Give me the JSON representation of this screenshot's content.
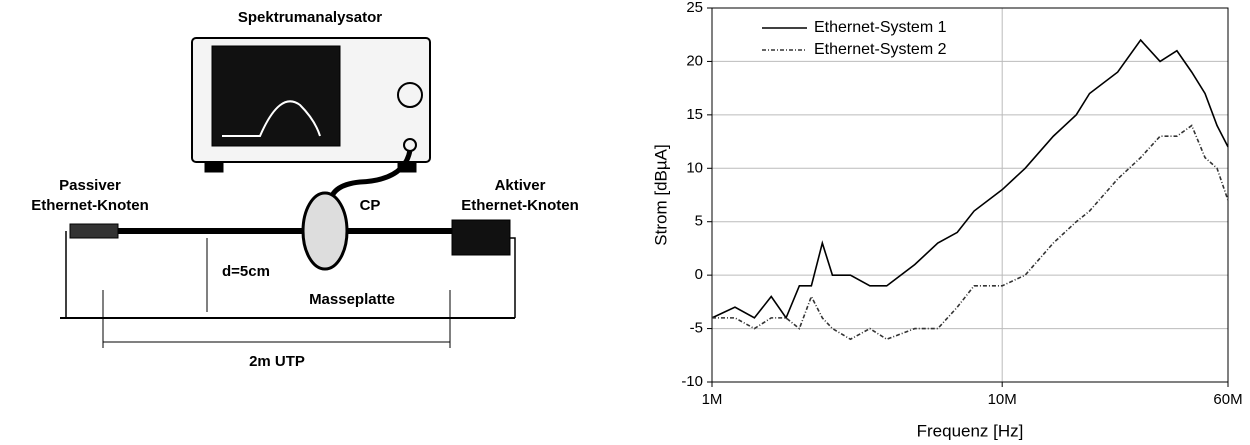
{
  "diagram": {
    "analyzer_label": "Spektrumanalysator",
    "passive_node": [
      "Passiver",
      "Ethernet-Knoten"
    ],
    "active_node": [
      "Aktiver",
      "Ethernet-Knoten"
    ],
    "probe_label": "CP",
    "distance_label": "d=5cm",
    "ground_label": "Masseplatte",
    "cable_label": "2m UTP"
  },
  "chart_data": {
    "type": "line",
    "xlabel": "Frequenz [Hz]",
    "ylabel": "Strom [dBµA]",
    "xlog": true,
    "grid": true,
    "legend": "upper-left",
    "x": [
      1000000,
      1200000,
      1400000,
      1600000,
      1800000,
      2000000,
      2200000,
      2400000,
      2600000,
      3000000,
      3500000,
      4000000,
      5000000,
      6000000,
      7000000,
      8000000,
      10000000,
      12000000,
      15000000,
      18000000,
      20000000,
      25000000,
      30000000,
      35000000,
      40000000,
      45000000,
      50000000,
      55000000,
      60000000
    ],
    "series": [
      {
        "name": "Ethernet-System 1",
        "color": "#000000",
        "dash": "none",
        "values": [
          -4,
          -3,
          -4,
          -2,
          -4,
          -1,
          -1,
          3,
          0,
          0,
          -1,
          -1,
          1,
          3,
          4,
          6,
          8,
          10,
          13,
          15,
          17,
          19,
          22,
          20,
          21,
          19,
          17,
          14,
          12
        ]
      },
      {
        "name": "Ethernet-System 2",
        "color": "#333333",
        "dash": "4 2 1 2",
        "values": [
          -4,
          -4,
          -5,
          -4,
          -4,
          -5,
          -2,
          -4,
          -5,
          -6,
          -5,
          -6,
          -5,
          -5,
          -3,
          -1,
          -1,
          0,
          3,
          5,
          6,
          9,
          11,
          13,
          13,
          14,
          11,
          10,
          7
        ]
      }
    ],
    "xlim": [
      1000000,
      60000000
    ],
    "xticks": [
      {
        "value": 1000000,
        "label": "1M"
      },
      {
        "value": 10000000,
        "label": "10M"
      },
      {
        "value": 60000000,
        "label": "60M"
      }
    ],
    "ylim": [
      -10,
      25
    ],
    "yticks": [
      -10,
      -5,
      0,
      5,
      10,
      15,
      20,
      25
    ]
  }
}
